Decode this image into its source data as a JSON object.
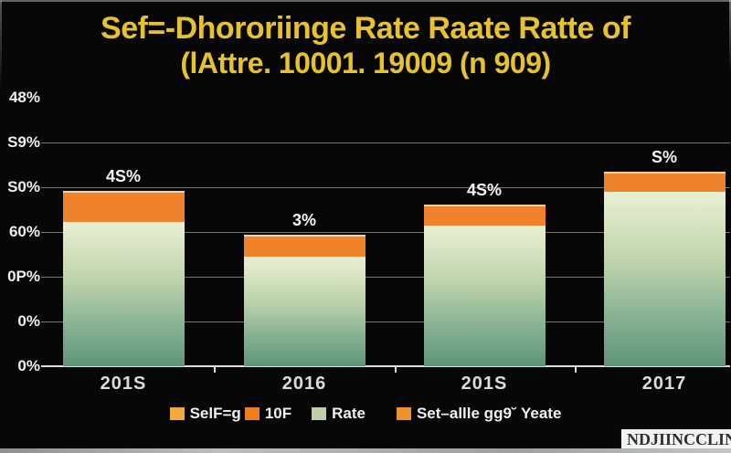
{
  "title": {
    "line1": "Sef=-Dhororiinge Rate Raate Ratte of",
    "line2": "(lAttre. 10001. 19009 (n 909)"
  },
  "watermark": "NDJIINCCLINC",
  "colors": {
    "background": "#070707",
    "title_text": "#E7C22F",
    "bar_orange": "#F0822B",
    "bar_green_top": "#EAF0D3",
    "bar_green_bottom": "#5F9478",
    "axis_text": "#EFEFEF",
    "gridline": "#CDCDCD"
  },
  "chart_data": {
    "type": "bar",
    "stacked": true,
    "title": "Sef=-Dhororiinge Rate Raate Ratte of (lAttre. 10001. 19009 (n 909)",
    "categories": [
      "201S",
      "2016",
      "201S",
      "2017"
    ],
    "series": [
      {
        "name": "Rate",
        "role": "green-gradient",
        "values": [
          32.2,
          24.5,
          31.4,
          39.0
        ]
      },
      {
        "name": "Self-g",
        "role": "orange-top",
        "values": [
          6.9,
          4.9,
          4.7,
          4.5
        ]
      }
    ],
    "bar_total_labels": [
      "4S%",
      "3%",
      "4S%",
      "S%"
    ],
    "y_tick_labels_bottom_to_top": [
      "0%",
      "0%",
      "0P%",
      "60%",
      "S0%",
      "S9%",
      "48%"
    ],
    "ylim": [
      0,
      60
    ],
    "y_gridline_step": 10,
    "grid": true,
    "legend_position": "bottom",
    "legend": [
      {
        "label": "SelF=g",
        "color": "#F2A93C"
      },
      {
        "label": "10F",
        "color": "#F07D1E"
      },
      {
        "label": "Rate",
        "color": "#BFCDA9"
      },
      {
        "label": "Set–allle gg9˘ Yeate",
        "color": "#F0912E"
      }
    ]
  }
}
